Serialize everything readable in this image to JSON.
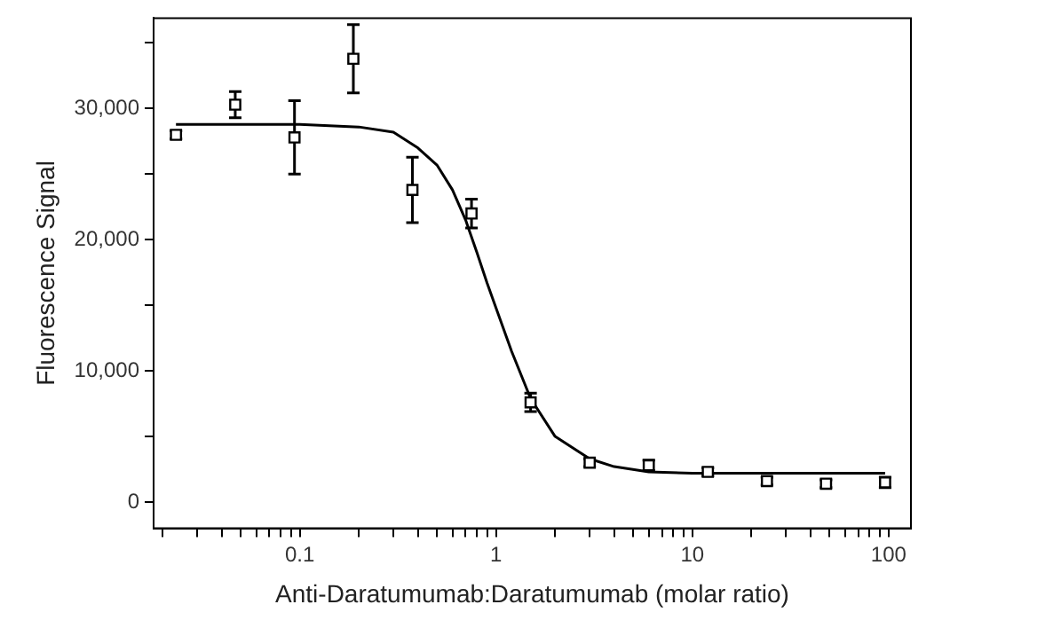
{
  "chart_data": {
    "type": "scatter",
    "xlabel": "Anti-Daratumumab:Daratumumab (molar ratio)",
    "ylabel": "Fluorescence Signal",
    "log": "x",
    "grid": false,
    "legend": false,
    "marker": "square",
    "xlim": [
      0.018,
      130
    ],
    "ylim": [
      -2000,
      36900
    ],
    "xticks": [
      {
        "value": 0.02,
        "label": null
      },
      {
        "value": 0.03,
        "label": null
      },
      {
        "value": 0.04,
        "label": null
      },
      {
        "value": 0.05,
        "label": null
      },
      {
        "value": 0.06,
        "label": null
      },
      {
        "value": 0.07,
        "label": null
      },
      {
        "value": 0.08,
        "label": null
      },
      {
        "value": 0.09,
        "label": null
      },
      0.1,
      {
        "value": 0.2,
        "label": null
      },
      {
        "value": 0.3,
        "label": null
      },
      {
        "value": 0.4,
        "label": null
      },
      {
        "value": 0.5,
        "label": null
      },
      {
        "value": 0.6,
        "label": null
      },
      {
        "value": 0.7,
        "label": null
      },
      {
        "value": 0.8,
        "label": null
      },
      {
        "value": 0.9,
        "label": null
      },
      1,
      {
        "value": 2,
        "label": null
      },
      {
        "value": 3,
        "label": null
      },
      {
        "value": 4,
        "label": null
      },
      {
        "value": 5,
        "label": null
      },
      {
        "value": 6,
        "label": null
      },
      {
        "value": 7,
        "label": null
      },
      {
        "value": 8,
        "label": null
      },
      {
        "value": 9,
        "label": null
      },
      10,
      {
        "value": 20,
        "label": null
      },
      {
        "value": 30,
        "label": null
      },
      {
        "value": 40,
        "label": null
      },
      {
        "value": 50,
        "label": null
      },
      {
        "value": 60,
        "label": null
      },
      {
        "value": 70,
        "label": null
      },
      {
        "value": 80,
        "label": null
      },
      {
        "value": 90,
        "label": null
      },
      100
    ],
    "yticks": [
      0,
      {
        "value": 5000,
        "label": null
      },
      {
        "value": 10000,
        "label": "10,000"
      },
      {
        "value": 15000,
        "label": null
      },
      {
        "value": 20000,
        "label": "20,000"
      },
      {
        "value": 25000,
        "label": null
      },
      {
        "value": 30000,
        "label": "30,000"
      },
      {
        "value": 35000,
        "label": null
      }
    ],
    "series": [
      {
        "color": "#000000",
        "x": [
          0.0234,
          0.0469,
          0.094,
          0.1875,
          0.375,
          0.75,
          1.5,
          3,
          6,
          12,
          24,
          48,
          96
        ],
        "values": [
          28000,
          30300,
          27800,
          33800,
          23800,
          22000,
          7600,
          3000,
          2800,
          2300,
          1600,
          1400,
          1500
        ],
        "errors": [
          300,
          1000,
          2800,
          2600,
          2500,
          1100,
          700,
          300,
          400,
          300,
          300,
          300,
          400
        ]
      },
      {
        "type": "line",
        "color": "#000000",
        "marker": "none",
        "x": [
          0.0234,
          0.1,
          0.2,
          0.3,
          0.4,
          0.5,
          0.6,
          0.7,
          0.8,
          0.9,
          1.0,
          1.2,
          1.5,
          2,
          3,
          4,
          6,
          10,
          96
        ],
        "values": [
          28800,
          28800,
          28600,
          28200,
          27000,
          25700,
          23800,
          21500,
          19000,
          16700,
          14800,
          11500,
          7900,
          5000,
          3300,
          2700,
          2300,
          2200,
          2200
        ]
      }
    ]
  }
}
